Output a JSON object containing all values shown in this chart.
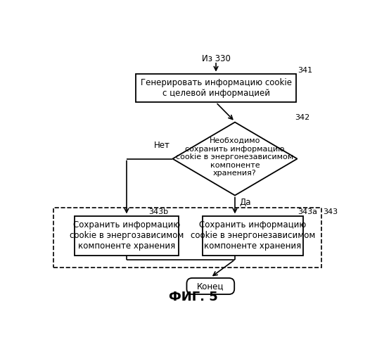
{
  "bg_color": "#ffffff",
  "title": "ФИГ. 5",
  "from_label": "Из 330",
  "box341_label": "Генерировать информацию cookie\nс целевой информацией",
  "box341_tag": "341",
  "diamond342_label": "Необходимо\nсохранить информацию\ncookie в энергонезависимом\nкомпоненте\nхранения?",
  "diamond342_tag": "342",
  "no_label": "Нет",
  "yes_label": "Да",
  "box343a_label": "Сохранить информацию\ncookie в энергонезависимом\nкомпоненте хранения",
  "box343a_tag": "343а",
  "box343b_label": "Сохранить информацию\ncookie в энергозависимом\nкомпоненте хранения",
  "box343b_tag": "343b",
  "group343_tag": "343",
  "end_label": "Конец",
  "font_size": 8.5,
  "tag_font_size": 8,
  "title_font_size": 13
}
